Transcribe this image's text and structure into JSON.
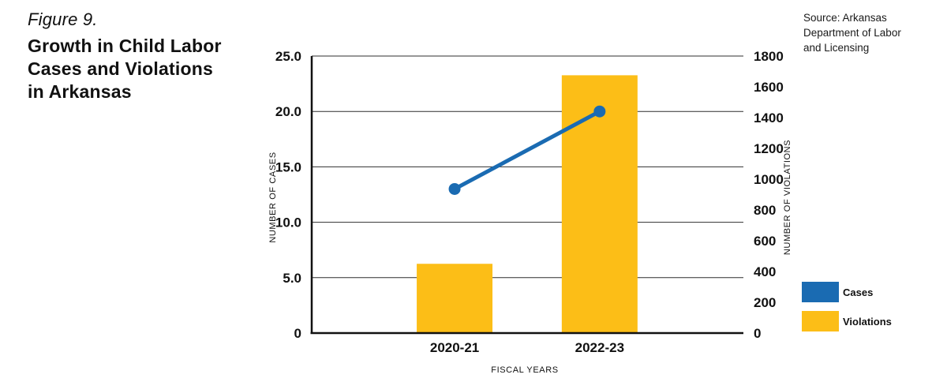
{
  "figure": {
    "label": "Figure 9.",
    "title_lines": [
      "Growth in Child Labor",
      "Cases and Violations",
      "in Arkansas"
    ]
  },
  "source": {
    "lines": [
      "Source: Arkansas",
      "Department of Labor",
      "and Licensing"
    ]
  },
  "legend": [
    {
      "label": "Cases",
      "color": "#1A6BB2"
    },
    {
      "label": "Violations",
      "color": "#FCBE17"
    }
  ],
  "chart_data": {
    "type": "combo bar+line",
    "categories": [
      "2020-21",
      "2022-23"
    ],
    "series": [
      {
        "name": "Cases",
        "type": "line",
        "axis": "left",
        "color": "#1A6BB2",
        "values": [
          13,
          20
        ]
      },
      {
        "name": "Violations",
        "type": "bar",
        "axis": "right",
        "color": "#FCBE17",
        "values": [
          450,
          1675
        ]
      }
    ],
    "left_axis": {
      "label": "NUMBER OF CASES",
      "range": [
        0,
        25
      ],
      "ticks": [
        "25.0",
        "20.0",
        "15.0",
        "10.0",
        "5.0",
        "0"
      ]
    },
    "right_axis": {
      "label": "NUMBER OF VIOLATIONS",
      "range": [
        0,
        1800
      ],
      "ticks": [
        "1800",
        "1600",
        "1400",
        "1200",
        "1000",
        "800",
        "600",
        "400",
        "200",
        "0"
      ]
    },
    "x_axis": {
      "label": "FISCAL YEARS"
    },
    "grid": "horizontal gridlines at left-axis 5.0 intervals; right-axis labels evenly spaced 0-1800",
    "legend_position": "right",
    "colors": {
      "grid": "#2f2f2f",
      "axis": "#111111"
    }
  }
}
